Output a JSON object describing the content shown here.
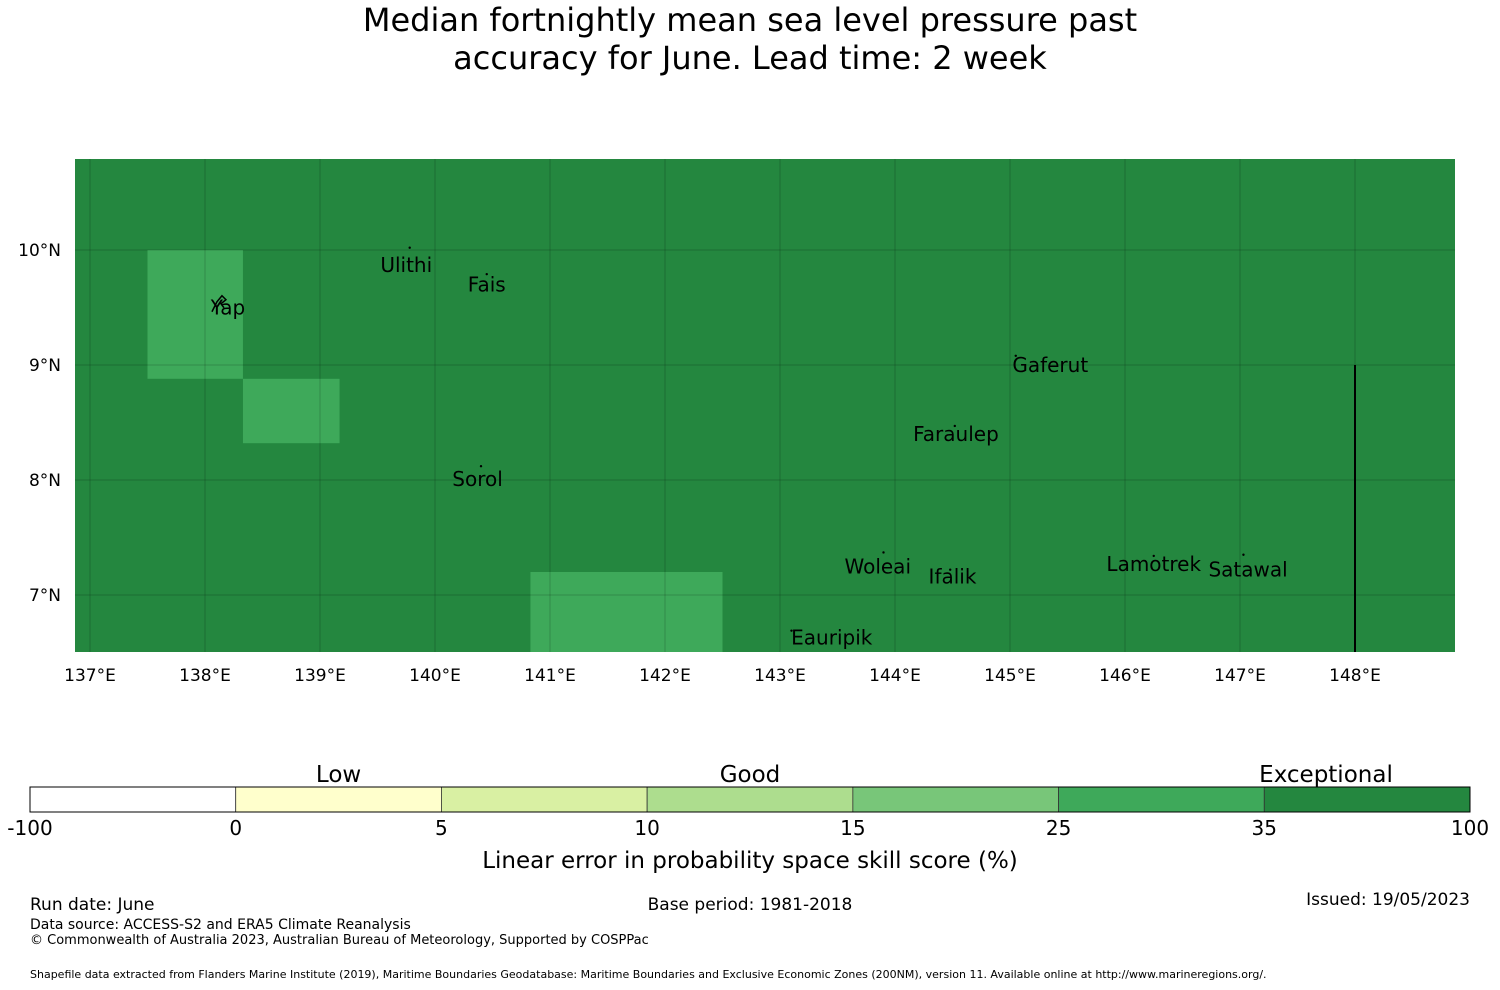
{
  "title": {
    "line1": "Median fortnightly mean sea level pressure past",
    "line2": "accuracy for June. Lead time: 2 week"
  },
  "map": {
    "lon_range": [
      137,
      149
    ],
    "lat_range": [
      6.5,
      10.8
    ],
    "lon_ticks": [
      {
        "value": 137,
        "label": "137°E"
      },
      {
        "value": 138,
        "label": "138°E"
      },
      {
        "value": 139,
        "label": "139°E"
      },
      {
        "value": 140,
        "label": "140°E"
      },
      {
        "value": 141,
        "label": "141°E"
      },
      {
        "value": 142,
        "label": "142°E"
      },
      {
        "value": 143,
        "label": "143°E"
      },
      {
        "value": 144,
        "label": "144°E"
      },
      {
        "value": 145,
        "label": "145°E"
      },
      {
        "value": 146,
        "label": "146°E"
      },
      {
        "value": 147,
        "label": "147°E"
      },
      {
        "value": 148,
        "label": "148°E"
      }
    ],
    "lat_ticks": [
      {
        "value": 10,
        "label": "10°N"
      },
      {
        "value": 9,
        "label": "9°N"
      },
      {
        "value": 8,
        "label": "8°N"
      },
      {
        "value": 7,
        "label": "7°N"
      }
    ],
    "background_class": "35-100",
    "background_color": "#24873f",
    "cells": [
      {
        "lon": [
          137.5,
          138.33
        ],
        "lat": [
          8.88,
          10.0
        ],
        "class": "25-35",
        "color": "#3ea95a"
      },
      {
        "lon": [
          138.33,
          139.17
        ],
        "lat": [
          8.32,
          8.88
        ],
        "class": "25-35",
        "color": "#3ea95a"
      },
      {
        "lon": [
          140.83,
          142.5
        ],
        "lat": [
          6.5,
          7.2
        ],
        "class": "25-35",
        "color": "#3ea95a"
      }
    ],
    "boundary_line": {
      "lon": 148.0,
      "lat": [
        6.5,
        9.0
      ]
    },
    "places": [
      {
        "name": "Ulithi",
        "lon": 139.75,
        "lat": 9.87
      },
      {
        "name": "Fais",
        "lon": 140.45,
        "lat": 9.7
      },
      {
        "name": "Yap",
        "lon": 138.2,
        "lat": 9.5
      },
      {
        "name": "Gaferut",
        "lon": 145.35,
        "lat": 9.0
      },
      {
        "name": "Faraulep",
        "lon": 144.53,
        "lat": 8.4
      },
      {
        "name": "Sorol",
        "lon": 140.37,
        "lat": 8.01
      },
      {
        "name": "Woleai",
        "lon": 143.85,
        "lat": 7.25
      },
      {
        "name": "Ifalik",
        "lon": 144.5,
        "lat": 7.16
      },
      {
        "name": "Lamotrek",
        "lon": 146.25,
        "lat": 7.27
      },
      {
        "name": "Satawal",
        "lon": 147.07,
        "lat": 7.22
      },
      {
        "name": "Eauripik",
        "lon": 143.45,
        "lat": 6.63
      }
    ],
    "island_markers": [
      {
        "lon": 139.78,
        "lat": 10.02
      },
      {
        "lon": 140.45,
        "lat": 9.79
      },
      {
        "lon": 140.4,
        "lat": 8.12
      },
      {
        "lon": 145.05,
        "lat": 9.08
      },
      {
        "lon": 144.52,
        "lat": 8.47
      },
      {
        "lon": 143.9,
        "lat": 7.37
      },
      {
        "lon": 144.48,
        "lat": 7.22
      },
      {
        "lon": 146.25,
        "lat": 7.34
      },
      {
        "lon": 147.03,
        "lat": 7.35
      },
      {
        "lon": 143.1,
        "lat": 6.69
      }
    ]
  },
  "colorbar": {
    "categories": [
      {
        "label": "Low",
        "position": 1.5
      },
      {
        "label": "Good",
        "position": 3.5
      },
      {
        "label": "Exceptional",
        "position": 6.3
      }
    ],
    "bins": [
      {
        "from": "-100",
        "to": "0",
        "color": "#ffffff"
      },
      {
        "from": "0",
        "to": "5",
        "color": "#ffffcc"
      },
      {
        "from": "5",
        "to": "10",
        "color": "#d9f0a3"
      },
      {
        "from": "10",
        "to": "15",
        "color": "#addd8e"
      },
      {
        "from": "15",
        "to": "25",
        "color": "#78c679"
      },
      {
        "from": "25",
        "to": "35",
        "color": "#3ea95a"
      },
      {
        "from": "35",
        "to": "100",
        "color": "#24873f"
      }
    ],
    "tick_labels": [
      "-100",
      "0",
      "5",
      "10",
      "15",
      "25",
      "35",
      "100"
    ],
    "title": "Linear error in probability space skill score (%)"
  },
  "footer": {
    "run_date": "Run date: June",
    "base_period": "Base period: 1981-2018",
    "issued": "Issued: 19/05/2023",
    "data_source": "Data source: ACCESS-S2 and ERA5 Climate Reanalysis",
    "copyright": "© Commonwealth of Australia 2023, Australian Bureau of Meteorology, Supported by COSPPac",
    "shapefile": "Shapefile data extracted from Flanders Marine Institute (2019), Maritime Boundaries Geodatabase: Maritime Boundaries and Exclusive Economic Zones (200NM), version 11. Available online at http://www.marineregions.org/."
  }
}
